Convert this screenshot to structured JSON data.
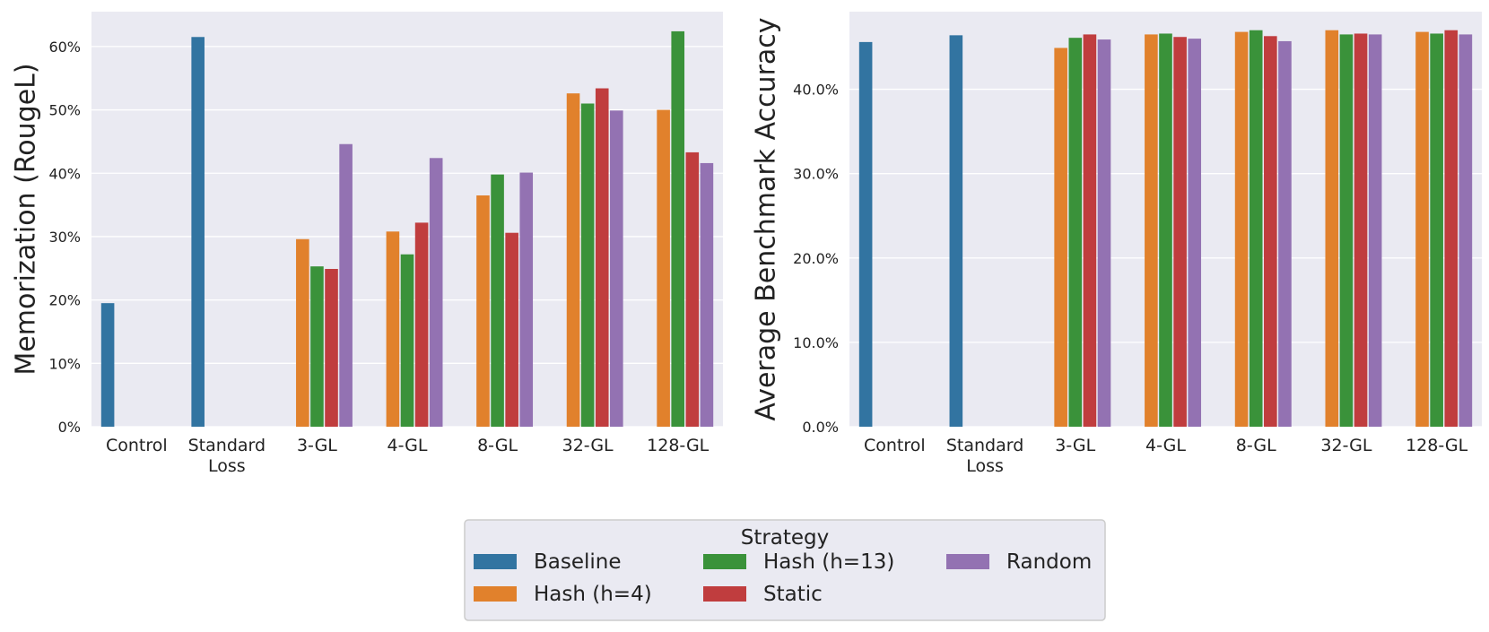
{
  "colors": {
    "plot_bg": "#eaeaf2",
    "grid": "#ffffff",
    "Baseline": "#3274a1",
    "Hash (h=4)": "#e1812c",
    "Hash (h=13)": "#3a923a",
    "Static": "#c03d3e",
    "Random": "#9372b2"
  },
  "legend": {
    "title": "Strategy",
    "entries": [
      "Baseline",
      "Hash (h=4)",
      "Hash (h=13)",
      "Static",
      "Random"
    ]
  },
  "chart_data": [
    {
      "type": "bar",
      "title": "",
      "xlabel": "",
      "ylabel": "Memorization (RougeL)",
      "ylim": [
        0,
        65.5
      ],
      "yticks": [
        0,
        10,
        20,
        30,
        40,
        50,
        60
      ],
      "ytick_labels": [
        "0%",
        "10%",
        "20%",
        "30%",
        "40%",
        "50%",
        "60%"
      ],
      "grid": true,
      "categories": [
        [
          "Control"
        ],
        [
          "Standard",
          "Loss"
        ],
        [
          "3-GL"
        ],
        [
          "4-GL"
        ],
        [
          "8-GL"
        ],
        [
          "32-GL"
        ],
        [
          "128-GL"
        ]
      ],
      "series": [
        {
          "name": "Baseline",
          "values": [
            19.5,
            61.5,
            null,
            null,
            null,
            null,
            null
          ]
        },
        {
          "name": "Hash (h=4)",
          "values": [
            null,
            null,
            29.6,
            30.8,
            36.5,
            52.6,
            50.0
          ]
        },
        {
          "name": "Hash (h=13)",
          "values": [
            null,
            null,
            25.3,
            27.2,
            39.8,
            51.0,
            62.4
          ]
        },
        {
          "name": "Static",
          "values": [
            null,
            null,
            24.9,
            32.2,
            30.6,
            53.4,
            43.3
          ]
        },
        {
          "name": "Random",
          "values": [
            null,
            null,
            44.6,
            42.4,
            40.1,
            49.9,
            41.6
          ]
        }
      ]
    },
    {
      "type": "bar",
      "title": "",
      "xlabel": "",
      "ylabel": "Average Benchmark Accuracy",
      "ylim": [
        0,
        49.2
      ],
      "yticks": [
        0,
        10,
        20,
        30,
        40
      ],
      "ytick_labels": [
        "0.0%",
        "10.0%",
        "20.0%",
        "30.0%",
        "40.0%"
      ],
      "grid": true,
      "categories": [
        [
          "Control"
        ],
        [
          "Standard",
          "Loss"
        ],
        [
          "3-GL"
        ],
        [
          "4-GL"
        ],
        [
          "8-GL"
        ],
        [
          "32-GL"
        ],
        [
          "128-GL"
        ]
      ],
      "series": [
        {
          "name": "Baseline",
          "values": [
            45.6,
            46.4,
            null,
            null,
            null,
            null,
            null
          ]
        },
        {
          "name": "Hash (h=4)",
          "values": [
            null,
            null,
            44.9,
            46.5,
            46.8,
            47.0,
            46.8
          ]
        },
        {
          "name": "Hash (h=13)",
          "values": [
            null,
            null,
            46.1,
            46.6,
            47.0,
            46.5,
            46.6
          ]
        },
        {
          "name": "Static",
          "values": [
            null,
            null,
            46.5,
            46.2,
            46.3,
            46.6,
            47.0
          ]
        },
        {
          "name": "Random",
          "values": [
            null,
            null,
            45.9,
            46.0,
            45.7,
            46.5,
            46.5
          ]
        }
      ]
    }
  ]
}
